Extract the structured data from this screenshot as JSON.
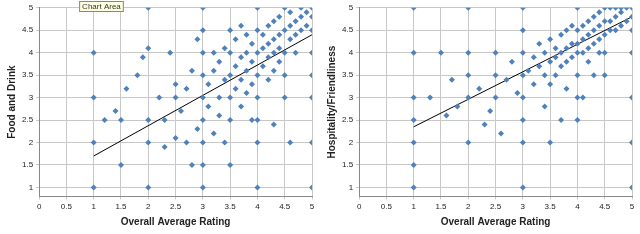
{
  "chart_data": [
    {
      "type": "scatter",
      "annotation": "Chart Area",
      "x_label": "Overall Average Rating",
      "y_label": "Food and Drink",
      "xlim": [
        0,
        5
      ],
      "xticks": [
        0,
        0.5,
        1,
        1.5,
        2,
        2.5,
        3,
        3.5,
        4,
        4.5,
        5
      ],
      "ylim": [
        0.8,
        5
      ],
      "yticks": [
        1,
        1.5,
        2,
        2.5,
        3,
        3.5,
        4,
        4.5,
        5
      ],
      "grid": true,
      "marker": "diamond",
      "series": [
        {
          "color": "#4f81bd",
          "x": [
            1,
            1,
            1,
            1,
            1.2,
            1.4,
            1.5,
            1.5,
            1.6,
            1.8,
            2,
            2,
            2,
            2,
            2,
            2.2,
            2.3,
            2.3,
            2.5,
            2.5,
            2.5,
            2.6,
            2.7,
            2.7,
            2.8,
            2.8,
            2.9,
            3,
            3,
            3,
            3,
            3,
            3,
            3,
            3,
            3,
            3.1,
            3.1,
            3.2,
            3.2,
            3.2,
            3.3,
            3.3,
            3.3,
            3.4,
            3.4,
            3.4,
            3.5,
            3.5,
            3.5,
            3.5,
            3.5,
            3.5,
            3.6,
            3.6,
            3.6,
            3.7,
            3.7,
            3.7,
            3.7,
            3.8,
            3.8,
            3.8,
            3.8,
            3.9,
            3.9,
            3.9,
            4,
            4,
            4,
            4,
            4,
            4,
            4,
            4,
            4.1,
            4.1,
            4.1,
            4.2,
            4.2,
            4.2,
            4.2,
            4.3,
            4.3,
            4.3,
            4.3,
            4.4,
            4.4,
            4.4,
            4.4,
            4.5,
            4.5,
            4.5,
            4.5,
            4.5,
            4.6,
            4.6,
            4.6,
            4.7,
            4.7,
            4.7,
            4.8,
            4.8,
            4.8,
            4.9,
            4.9,
            5,
            5,
            5,
            5,
            5,
            5,
            5,
            5,
            4.3,
            3.9,
            2.4,
            2.9,
            1.9,
            4.6
          ],
          "values": [
            1,
            2,
            3,
            4,
            2.5,
            2.7,
            2.5,
            1.5,
            3.2,
            3.5,
            1,
            2,
            2.5,
            4.1,
            5,
            3,
            2.5,
            1.9,
            2.1,
            3,
            3.3,
            2.7,
            3.2,
            2,
            1.5,
            3.6,
            2.3,
            1,
            1.5,
            2,
            2.5,
            3,
            3.5,
            4,
            4.5,
            5,
            2.8,
            3.3,
            2.2,
            3.6,
            4,
            3,
            3.8,
            2.6,
            3.4,
            4.1,
            2,
            3.5,
            3,
            4,
            4.5,
            1.5,
            2.5,
            3.7,
            3.2,
            4.3,
            3.9,
            3.4,
            2.8,
            4.6,
            3.6,
            4,
            4.4,
            3.1,
            3.8,
            4.2,
            3.3,
            4,
            3.5,
            4.5,
            3,
            5,
            2.5,
            1,
            2,
            4.1,
            3.7,
            4.4,
            4.2,
            3.9,
            4.6,
            3.4,
            4.3,
            4,
            4.7,
            3.6,
            4.4,
            4.1,
            4.8,
            3.8,
            4.5,
            4,
            5,
            3.5,
            3,
            4.6,
            4.3,
            4.9,
            4.7,
            4.4,
            4,
            4.8,
            4.5,
            5,
            4.9,
            4.6,
            5,
            4.5,
            4,
            3.5,
            3,
            2,
            1,
            4.8,
            2.4,
            2.5,
            4,
            4.3,
            3.9,
            2
          ]
        },
        {
          "type": "line",
          "color": "#000000",
          "x": [
            1,
            5
          ],
          "values": [
            1.7,
            4.4
          ]
        }
      ]
    },
    {
      "type": "scatter",
      "x_label": "Overall Average Rating",
      "y_label": "Hospitality/Friendliness",
      "xlim": [
        0,
        5
      ],
      "xticks": [
        0,
        0.5,
        1,
        1.5,
        2,
        2.5,
        3,
        3.5,
        4,
        4.5,
        5
      ],
      "ylim": [
        0.8,
        5
      ],
      "yticks": [
        1,
        1.5,
        2,
        2.5,
        3,
        3.5,
        4,
        4.5,
        5
      ],
      "grid": true,
      "marker": "diamond",
      "series": [
        {
          "color": "#4f81bd",
          "x": [
            1,
            1,
            1,
            1,
            1,
            1,
            1,
            1.3,
            1.5,
            1.6,
            1.8,
            2,
            2,
            2,
            2,
            2,
            2.2,
            2.3,
            2.5,
            2.5,
            2.5,
            2.6,
            2.7,
            2.8,
            2.9,
            3,
            3,
            3,
            3,
            3,
            3,
            3,
            3,
            3.1,
            3.2,
            3.2,
            3.3,
            3.3,
            3.4,
            3.4,
            3.4,
            3.5,
            3.5,
            3.5,
            3.5,
            3.6,
            3.6,
            3.6,
            3.7,
            3.7,
            3.7,
            3.8,
            3.8,
            3.8,
            3.8,
            3.9,
            3.9,
            3.9,
            4,
            4,
            4,
            4,
            4,
            4,
            4,
            4.1,
            4.1,
            4.1,
            4.2,
            4.2,
            4.2,
            4.2,
            4.3,
            4.3,
            4.3,
            4.4,
            4.4,
            4.4,
            4.4,
            4.5,
            4.5,
            4.5,
            4.5,
            4.5,
            4.6,
            4.6,
            4.6,
            4.7,
            4.7,
            4.7,
            4.8,
            4.8,
            4.8,
            4.9,
            4.9,
            5,
            5,
            5,
            5,
            5,
            5,
            5,
            4.3,
            3.7,
            4.1,
            2.4,
            1.7
          ],
          "values": [
            1,
            1.5,
            2,
            2.5,
            3,
            4,
            5,
            3,
            4,
            2.6,
            2.8,
            2,
            3,
            3.5,
            4,
            5,
            3.2,
            2.4,
            3.5,
            3,
            4,
            2.2,
            3.4,
            3.8,
            3.1,
            1,
            2,
            2.5,
            3,
            3.5,
            4,
            4.5,
            5,
            3.6,
            3.3,
            3.9,
            3.7,
            4.2,
            3.5,
            4,
            2.8,
            3.8,
            4.3,
            3.3,
            2,
            3.9,
            4.1,
            3.5,
            4,
            3.7,
            4.4,
            4.1,
            3.8,
            4.5,
            3.2,
            4.2,
            3.9,
            4.6,
            4.2,
            4,
            4.5,
            3.5,
            5,
            3,
            2.5,
            4.3,
            4,
            4.6,
            4.4,
            4.1,
            4.7,
            3.8,
            4.5,
            4.2,
            4.8,
            4.6,
            4.3,
            4.9,
            4,
            4.7,
            4.4,
            5,
            4,
            3.5,
            4.7,
            4.5,
            5,
            4.8,
            4.5,
            5,
            4.9,
            4.6,
            5,
            5,
            4.7,
            5,
            4.5,
            4,
            3,
            2,
            1,
            4.8,
            3.5,
            2.5,
            3,
            2.7,
            3.4
          ]
        },
        {
          "type": "line",
          "color": "#000000",
          "x": [
            1,
            5
          ],
          "values": [
            2.35,
            4.8
          ]
        }
      ]
    }
  ]
}
